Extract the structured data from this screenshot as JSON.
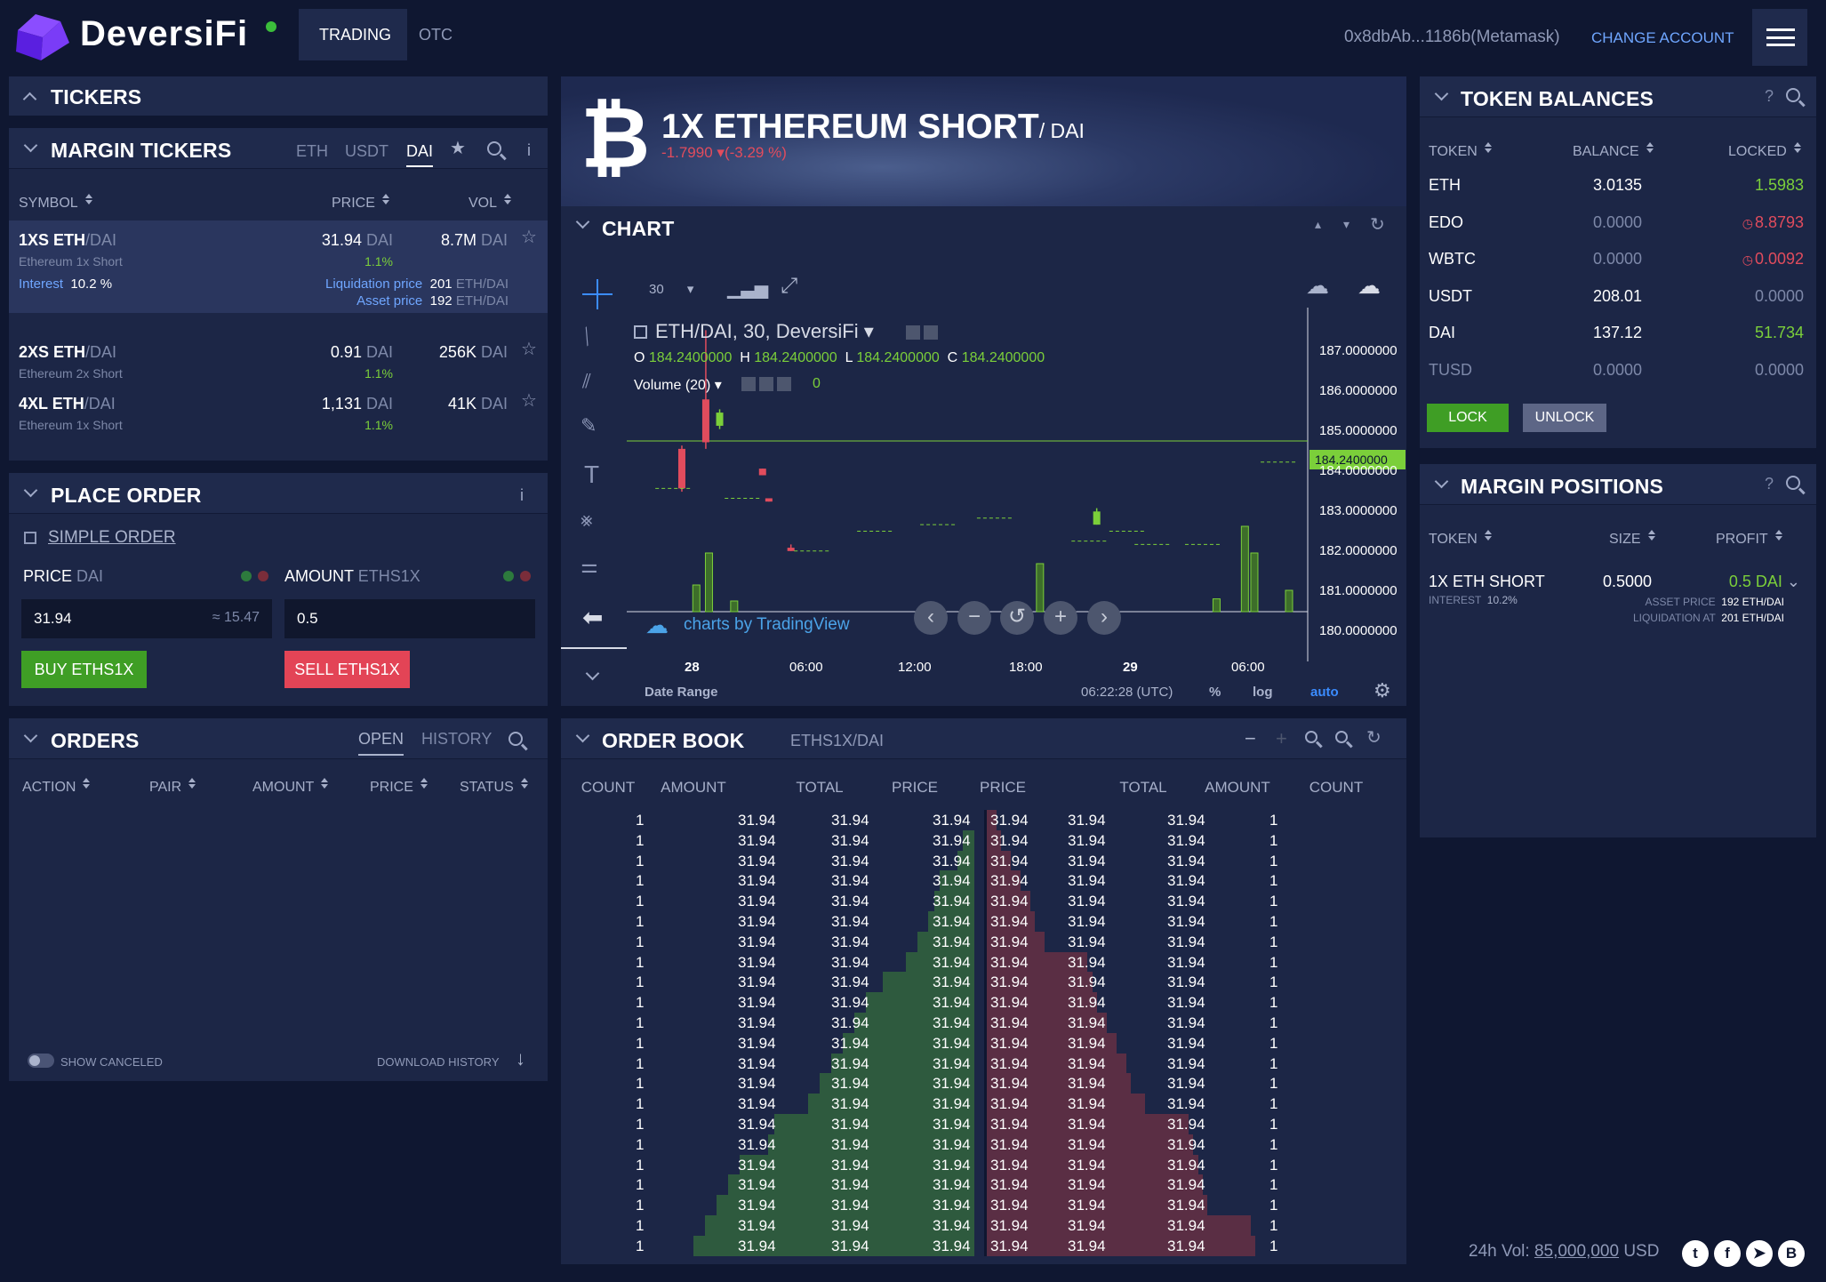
{
  "header": {
    "brand": "DeversiFi",
    "tabs": [
      "TRADING",
      "OTC"
    ],
    "account": "0x8dbAb...1186b(Metamask)",
    "change_account": "CHANGE ACCOUNT"
  },
  "tickers": {
    "title": "TICKERS"
  },
  "margin_tickers": {
    "title": "MARGIN TICKERS",
    "filters": [
      "ETH",
      "USDT",
      "DAI"
    ],
    "active_filter": "DAI",
    "info": "i",
    "columns": [
      "SYMBOL",
      "PRICE",
      "VOL"
    ],
    "rows": [
      {
        "base": "1XS ETH",
        "quote": "/DAI",
        "name": "Ethereum 1x Short",
        "price": "31.94",
        "price_unit": "DAI",
        "change": "1.1%",
        "vol": "8.7M",
        "vol_unit": "DAI",
        "interest_label": "Interest",
        "interest": "10.2 %",
        "liq_label": "Liquidation price",
        "liq": "201",
        "liq_unit": "ETH/DAI",
        "asset_label": "Asset price",
        "asset": "192",
        "asset_unit": "ETH/DAI"
      },
      {
        "base": "2XS ETH",
        "quote": "/DAI",
        "name": "Ethereum 2x Short",
        "price": "0.91",
        "price_unit": "DAI",
        "change": "1.1%",
        "vol": "256K",
        "vol_unit": "DAI"
      },
      {
        "base": "4XL ETH",
        "quote": "/DAI",
        "name": "Ethereum 1x Short",
        "price": "1,131",
        "price_unit": "DAI",
        "change": "1.1%",
        "vol": "41K",
        "vol_unit": "DAI"
      }
    ]
  },
  "place_order": {
    "title": "PLACE ORDER",
    "info": "i",
    "simple_order": "SIMPLE ORDER",
    "price_label": "PRICE",
    "price_unit": "DAI",
    "amount_label": "AMOUNT",
    "amount_unit": "ETHS1X",
    "price_value": "31.94",
    "price_equiv": "≈ 15.47",
    "amount_value": "0.5",
    "buy": "BUY ETHS1X",
    "sell": "SELL ETHS1X"
  },
  "orders": {
    "title": "ORDERS",
    "tabs": [
      "OPEN",
      "HISTORY"
    ],
    "columns": [
      "ACTION",
      "PAIR",
      "AMOUNT",
      "PRICE",
      "STATUS"
    ],
    "show_canceled": "SHOW CANCELED",
    "download": "DOWNLOAD HISTORY"
  },
  "instrument": {
    "title": "1X ETHEREUM SHORT",
    "quote": "/ DAI",
    "change": "-1.7990",
    "change_pct": "(-3.29 %)"
  },
  "chart": {
    "title": "CHART",
    "interval": "30",
    "legend_title": "ETH/DAI, 30, DeversiFi",
    "ohlc": {
      "o_label": "O",
      "o": "184.2400000",
      "h_label": "H",
      "h": "184.2400000",
      "l_label": "L",
      "l": "184.2400000",
      "c_label": "C",
      "c": "184.2400000"
    },
    "volume_label": "Volume (20)",
    "volume_value": "0",
    "watermark": "charts by TradingView",
    "price_axis": [
      "187.0000000",
      "186.0000000",
      "185.0000000",
      "184.0000000",
      "183.0000000",
      "182.0000000",
      "181.0000000",
      "180.0000000"
    ],
    "current_price": "184.2400000",
    "time_axis": [
      "28",
      "06:00",
      "12:00",
      "18:00",
      "29",
      "06:00"
    ],
    "date_range": "Date Range",
    "clock": "06:22:28 (UTC)",
    "opt_pct": "%",
    "opt_log": "log",
    "opt_auto": "auto"
  },
  "chart_data": {
    "type": "candlestick",
    "title": "ETH/DAI, 30, DeversiFi",
    "ylim": [
      179.6,
      187.8
    ],
    "x": [
      "28",
      "06:00",
      "12:00",
      "18:00",
      "29",
      "06:00"
    ],
    "candles": [
      {
        "t": 0.62,
        "o": 184.0,
        "c": 182.8,
        "h": 184.1,
        "l": 182.7,
        "color": "#e14c5d"
      },
      {
        "t": 1.0,
        "o": 185.5,
        "c": 184.2,
        "h": 187.6,
        "l": 184.0,
        "color": "#e14c5d"
      },
      {
        "t": 1.22,
        "o": 184.7,
        "c": 185.1,
        "h": 185.2,
        "l": 184.6,
        "color": "#7bcf3a"
      },
      {
        "t": 1.9,
        "o": 183.4,
        "c": 183.2,
        "h": 183.4,
        "l": 183.2,
        "color": "#e14c5d"
      },
      {
        "t": 2.0,
        "o": 182.5,
        "c": 182.4,
        "h": 182.5,
        "l": 182.4,
        "color": "#e14c5d"
      },
      {
        "t": 2.35,
        "o": 181.0,
        "c": 180.9,
        "h": 181.1,
        "l": 180.9,
        "color": "#e14c5d"
      },
      {
        "t": 7.2,
        "o": 181.7,
        "c": 182.1,
        "h": 182.2,
        "l": 181.7,
        "color": "#7bcf3a"
      }
    ],
    "volumes": [
      {
        "t": 0.85,
        "v": 0.25
      },
      {
        "t": 1.05,
        "v": 0.55
      },
      {
        "t": 1.45,
        "v": 0.1
      },
      {
        "t": 6.3,
        "v": 0.45
      },
      {
        "t": 9.1,
        "v": 0.12
      },
      {
        "t": 9.55,
        "v": 0.8
      },
      {
        "t": 9.7,
        "v": 0.55
      },
      {
        "t": 10.25,
        "v": 0.2
      }
    ]
  },
  "order_book": {
    "title": "ORDER BOOK",
    "pair": "ETHS1X/DAI",
    "columns": [
      "COUNT",
      "AMOUNT",
      "TOTAL",
      "PRICE",
      "PRICE",
      "TOTAL",
      "AMOUNT",
      "COUNT"
    ],
    "rows": 22,
    "bid": {
      "count": "1",
      "amount": "31.94",
      "total": "31.94",
      "price": "31.94"
    },
    "ask": {
      "count": "1",
      "amount": "31.94",
      "total": "31.94",
      "price": "31.94"
    },
    "bid_depth": [
      0.0,
      0.02,
      0.03,
      0.06,
      0.07,
      0.08,
      0.1,
      0.12,
      0.16,
      0.19,
      0.21,
      0.23,
      0.25,
      0.27,
      0.29,
      0.35,
      0.36,
      0.41,
      0.43,
      0.45,
      0.47,
      0.49
    ],
    "ask_depth": [
      0.02,
      0.03,
      0.05,
      0.07,
      0.09,
      0.1,
      0.12,
      0.21,
      0.22,
      0.23,
      0.25,
      0.27,
      0.29,
      0.3,
      0.33,
      0.42,
      0.43,
      0.44,
      0.45,
      0.46,
      0.55,
      0.56
    ]
  },
  "token_balances": {
    "title": "TOKEN BALANCES",
    "help": "?",
    "columns": [
      "TOKEN",
      "BALANCE",
      "LOCKED"
    ],
    "rows": [
      {
        "token": "ETH",
        "balance": "3.0135",
        "locked": "1.5983",
        "state": "green"
      },
      {
        "token": "EDO",
        "balance": "0.0000",
        "locked": "8.8793",
        "state": "red"
      },
      {
        "token": "WBTC",
        "balance": "0.0000",
        "locked": "0.0092",
        "state": "red"
      },
      {
        "token": "USDT",
        "balance": "208.01",
        "locked": "0.0000",
        "state": "dim"
      },
      {
        "token": "DAI",
        "balance": "137.12",
        "locked": "51.734",
        "state": "green"
      },
      {
        "token": "TUSD",
        "balance": "0.0000",
        "locked": "0.0000",
        "state": "dim"
      }
    ],
    "lock": "LOCK",
    "unlock": "UNLOCK"
  },
  "margin_positions": {
    "title": "MARGIN POSITIONS",
    "help": "?",
    "columns": [
      "TOKEN",
      "SIZE",
      "PROFIT"
    ],
    "rows": [
      {
        "token": "1X ETH SHORT",
        "interest_label": "INTEREST",
        "interest": "10.2%",
        "size": "0.5000",
        "profit": "0.5 DAI",
        "asset_label": "ASSET PRICE",
        "asset": "192 ETH/DAI",
        "liq_label": "LIQUIDATION AT",
        "liq": "201 ETH/DAI"
      }
    ]
  },
  "footer": {
    "vol_label": "24h Vol:",
    "vol_value": "85,000,000",
    "vol_unit": "USD",
    "social": [
      "twitter-icon",
      "facebook-icon",
      "telegram-icon",
      "blog-icon"
    ]
  },
  "colors": {
    "background": "#0f1731",
    "panel": "#1c2646",
    "green": "#7bcf3a",
    "red": "#e14c5d",
    "accent": "#6b2cf5",
    "link": "#6fa6ff"
  }
}
